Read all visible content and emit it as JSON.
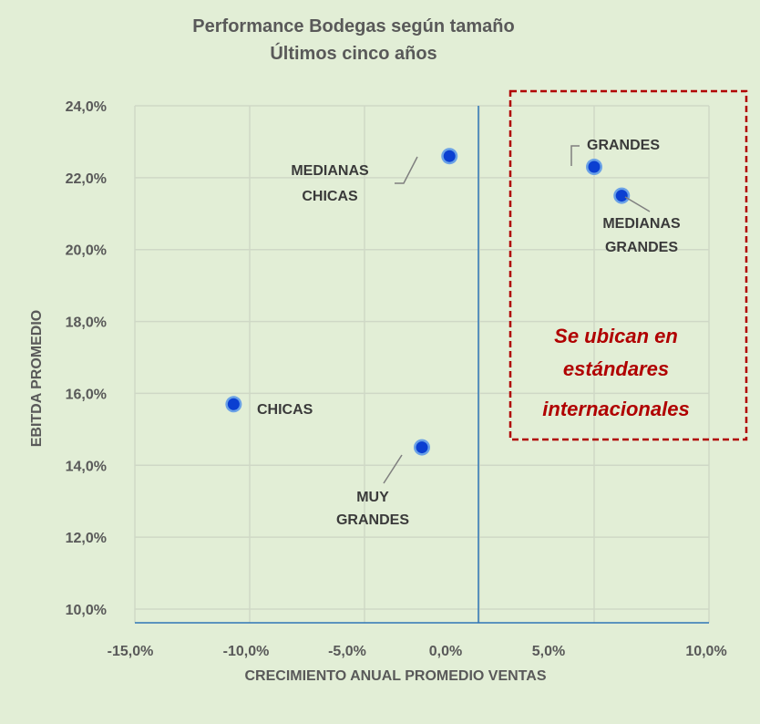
{
  "chart_data": {
    "type": "scatter",
    "title": "Performance Bodegas según tamaño",
    "subtitle": "Últimos cinco años",
    "xlabel": "CRECIMIENTO ANUAL PROMEDIO VENTAS",
    "ylabel": "EBITDA PROMEDIO",
    "xlim": [
      -15.0,
      10.0
    ],
    "ylim": [
      10.0,
      24.0
    ],
    "x_ticks": [
      "-15,0%",
      "-10,0%",
      "-5,0%",
      "0,0%",
      "5,0%",
      "10,0%"
    ],
    "y_ticks": [
      "10,0%",
      "12,0%",
      "14,0%",
      "16,0%",
      "18,0%",
      "20,0%",
      "22,0%",
      "24,0%"
    ],
    "x_tick_values": [
      -15,
      -10,
      -5,
      0,
      5,
      10
    ],
    "y_tick_values": [
      10,
      12,
      14,
      16,
      18,
      20,
      22,
      24
    ],
    "grid": true,
    "vertical_reference_x": 0.0,
    "points": [
      {
        "label": "MEDIANAS CHICAS",
        "x": -1.3,
        "y": 22.6
      },
      {
        "label": "GRANDES",
        "x": 5.0,
        "y": 22.3
      },
      {
        "label": "MEDIANAS GRANDES",
        "x": 6.2,
        "y": 21.5
      },
      {
        "label": "CHICAS",
        "x": -10.7,
        "y": 15.7
      },
      {
        "label": "MUY GRANDES",
        "x": -2.5,
        "y": 14.5
      }
    ],
    "callout_text": [
      "Se ubican en",
      "estándares",
      "internacionales"
    ],
    "colors": {
      "marker": "#0b3fd1",
      "marker_ring": "#6aa1e6",
      "axis_line": "#2e75b6",
      "callout": "#b00000",
      "background": "#e2eed6"
    }
  }
}
